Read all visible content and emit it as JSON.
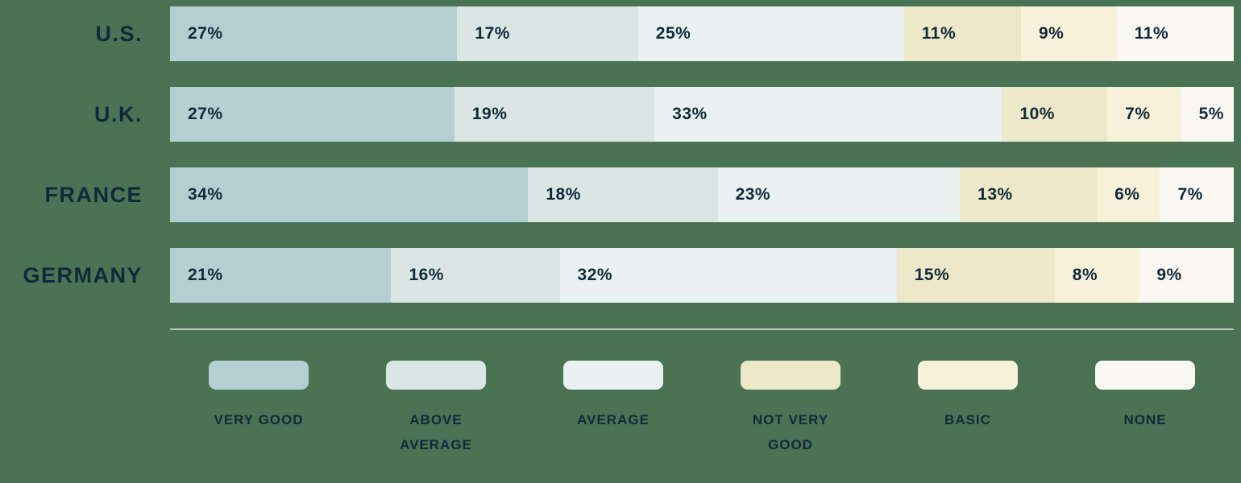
{
  "page": {
    "background_color": "#4a7254",
    "text_color": "#12293b",
    "divider_color": "#bdc4be"
  },
  "chart_data": {
    "type": "bar",
    "variant": "horizontal-stacked",
    "unit": "%",
    "title": "",
    "xlabel": "",
    "ylabel": "",
    "grid": false,
    "legend_position": "bottom",
    "categories": [
      "U.S.",
      "U.K.",
      "FRANCE",
      "GERMANY"
    ],
    "legend_entries": [
      "VERY GOOD",
      "ABOVE AVERAGE",
      "AVERAGE",
      "NOT VERY GOOD",
      "BASIC",
      "NONE"
    ],
    "segment_colors": [
      "#b4cfd1",
      "#d9e6e4",
      "#e9f2f0",
      "#ede8ca",
      "#f7f1da",
      "#faf8f2"
    ],
    "series": [
      {
        "name": "U.S.",
        "values": [
          27,
          17,
          25,
          11,
          9,
          11
        ]
      },
      {
        "name": "U.K.",
        "values": [
          27,
          19,
          33,
          10,
          7,
          5
        ]
      },
      {
        "name": "FRANCE",
        "values": [
          34,
          18,
          23,
          13,
          6,
          7
        ]
      },
      {
        "name": "GERMANY",
        "values": [
          21,
          16,
          32,
          15,
          8,
          9
        ]
      }
    ]
  }
}
